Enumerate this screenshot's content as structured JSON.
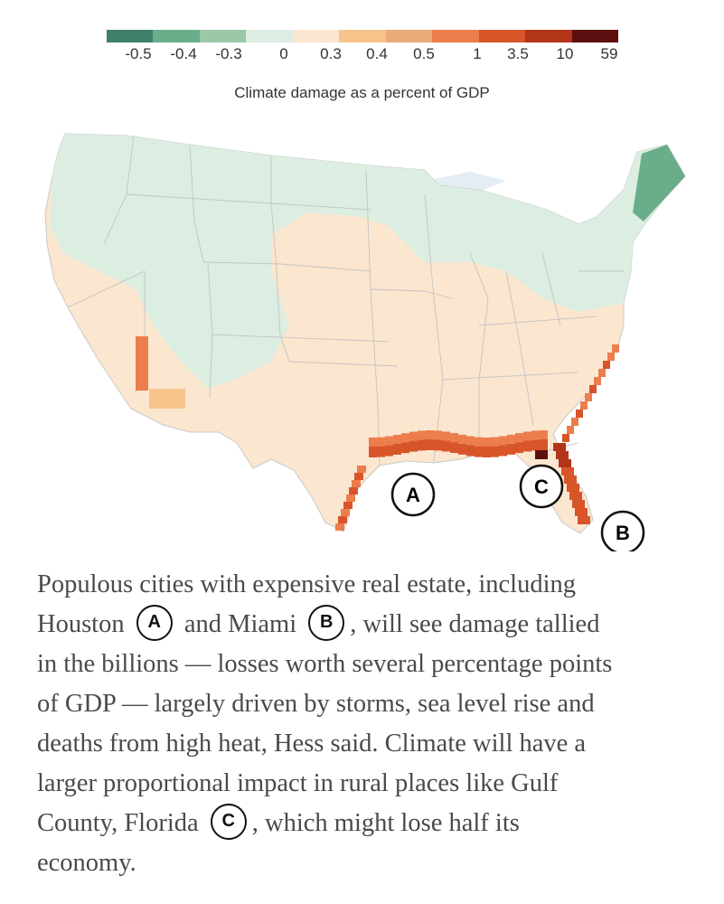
{
  "legend": {
    "title": "Climate damage as a percent of GDP",
    "colors": [
      "#3f7f6b",
      "#6aad8a",
      "#9cc8a8",
      "#dcede1",
      "#fbe6cf",
      "#f7c48c",
      "#e9ab79",
      "#ec7e4d",
      "#d8552a",
      "#b2351a",
      "#5d0e0e"
    ],
    "ticks": [
      "-0.5",
      "-0.4",
      "-0.3",
      "0",
      "0.3",
      "0.4",
      "0.5",
      "1",
      "3.5",
      "10",
      "59"
    ]
  },
  "map": {
    "base_color": "#fbe6cf",
    "north_color": "#dcede1",
    "markers": [
      {
        "id": "A",
        "label": "A"
      },
      {
        "id": "B",
        "label": "B"
      },
      {
        "id": "C",
        "label": "C"
      }
    ]
  },
  "caption": {
    "line1": "Populous cities with expensive real estate, including",
    "line2_pre": "Houston",
    "marker_a": "A",
    "line2_mid": "and Miami",
    "marker_b": "B",
    "line2_post": ", will see damage tallied",
    "line3": "in the billions — losses worth several percentage points",
    "line4": "of GDP — largely driven by storms, sea level rise and",
    "line5": "deaths from high heat, Hess said. Climate will have a",
    "line6": "larger proportional impact in rural places like Gulf",
    "line7_pre": "County, Florida",
    "marker_c": "C",
    "line7_post": ", which might lose half its",
    "line8": "economy."
  }
}
